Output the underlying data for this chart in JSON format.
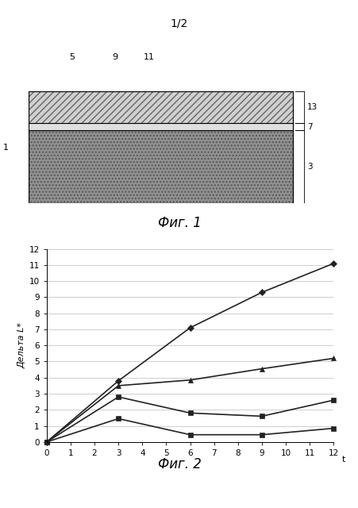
{
  "page_label": "1/2",
  "fig1_caption": "Фиг. 1",
  "fig2_caption": "Фиг. 2",
  "series": [
    {
      "x": [
        0,
        3,
        6,
        9,
        12
      ],
      "y": [
        0,
        3.8,
        7.1,
        9.3,
        11.1
      ],
      "marker": "D",
      "color": "#222222",
      "linewidth": 1.2
    },
    {
      "x": [
        0,
        3,
        6,
        9,
        12
      ],
      "y": [
        0,
        3.5,
        3.85,
        4.55,
        5.2
      ],
      "marker": "^",
      "color": "#222222",
      "linewidth": 1.2
    },
    {
      "x": [
        0,
        3,
        6,
        9,
        12
      ],
      "y": [
        0,
        2.8,
        1.8,
        1.6,
        2.6
      ],
      "marker": "s",
      "color": "#222222",
      "linewidth": 1.2
    },
    {
      "x": [
        0,
        3,
        6,
        9,
        12
      ],
      "y": [
        0,
        1.45,
        0.45,
        0.45,
        0.85
      ],
      "marker": "s",
      "color": "#222222",
      "linewidth": 1.2
    }
  ],
  "marker_sizes": [
    4,
    5,
    4,
    4
  ],
  "ylabel": "Дельта L*",
  "xlabel": "t",
  "ylim": [
    0,
    12
  ],
  "xlim": [
    0,
    12
  ],
  "yticks": [
    0,
    1,
    2,
    3,
    4,
    5,
    6,
    7,
    8,
    9,
    10,
    11,
    12
  ],
  "xticks": [
    0,
    1,
    2,
    3,
    4,
    5,
    6,
    7,
    8,
    9,
    10,
    11,
    12
  ],
  "bg_color": "#ffffff",
  "grid_color": "#bbbbbb"
}
